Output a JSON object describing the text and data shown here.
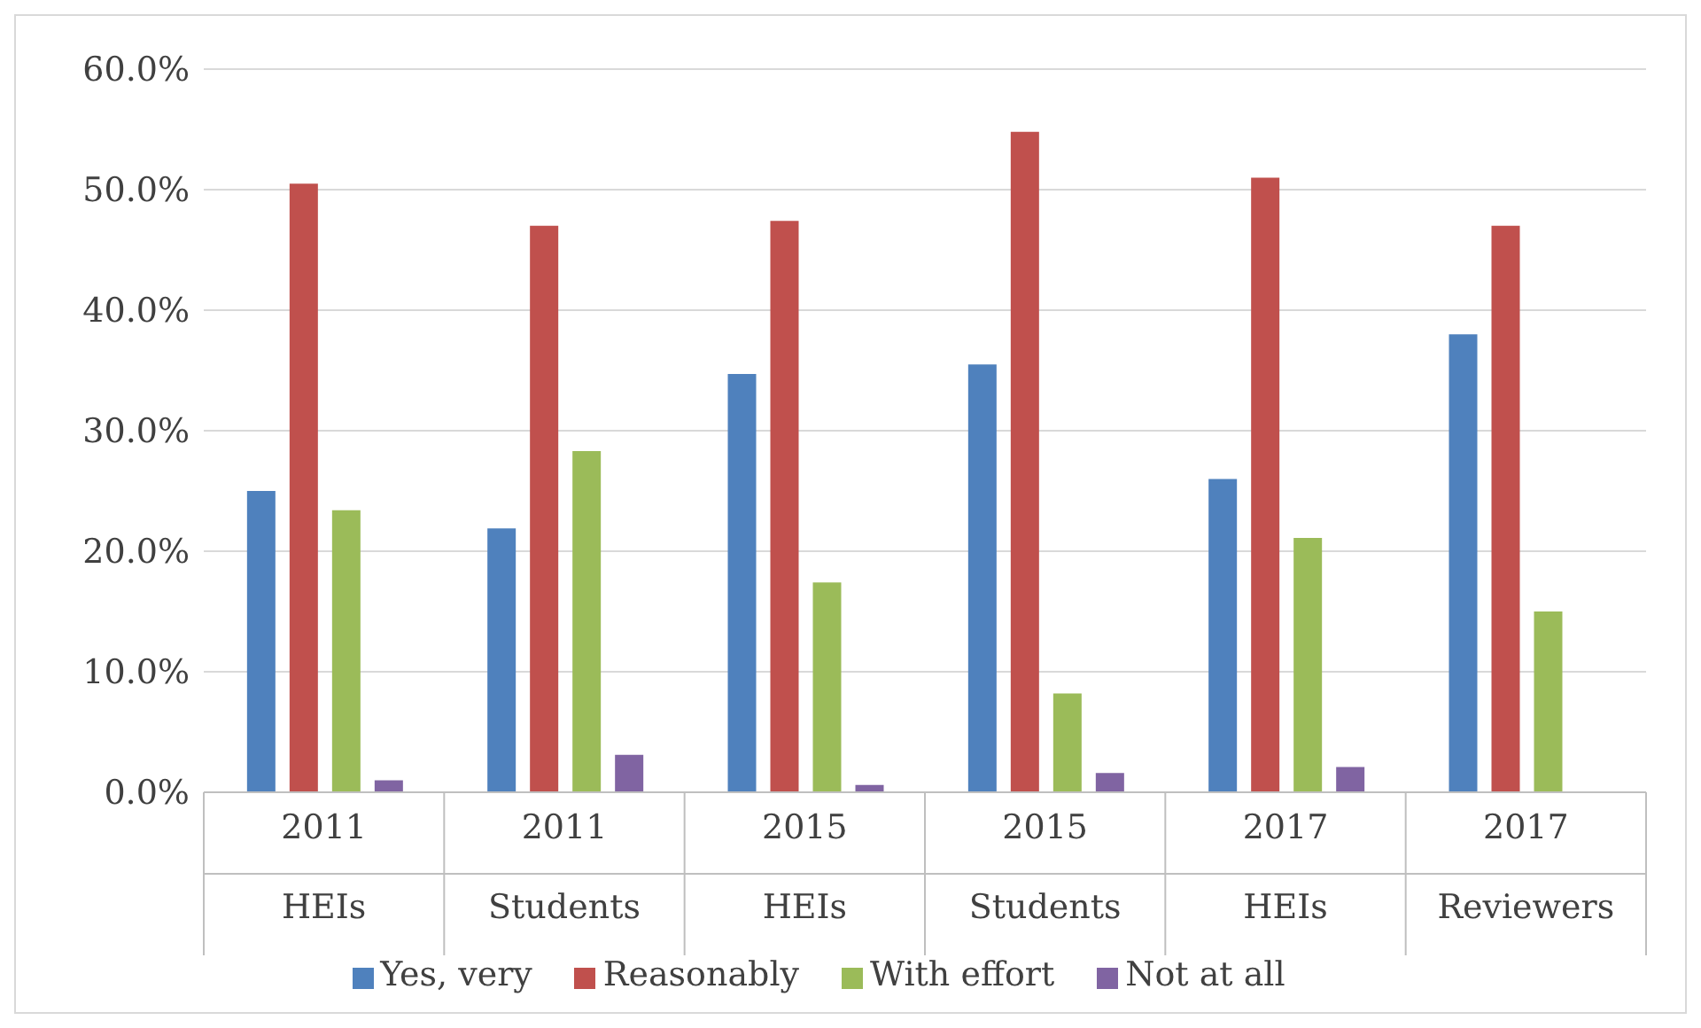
{
  "chart_data": {
    "type": "bar",
    "categories": [
      "2011\nHEIs",
      "2011\nStudents",
      "2015\nHEIs",
      "2015\nStudents",
      "2017\nHEIs",
      "2017\nReviewers"
    ],
    "series": [
      {
        "name": "Yes, very",
        "color": "#4f81bd",
        "values": [
          25.0,
          21.9,
          34.7,
          35.5,
          26.0,
          38.0
        ]
      },
      {
        "name": "Reasonably",
        "color": "#c0504d",
        "values": [
          50.5,
          47.0,
          47.4,
          54.8,
          51.0,
          47.0
        ]
      },
      {
        "name": "With effort",
        "color": "#9bbb59",
        "values": [
          23.4,
          28.3,
          17.4,
          8.2,
          21.1,
          15.0
        ]
      },
      {
        "name": "Not at all",
        "color": "#8064a2",
        "values": [
          1.0,
          3.1,
          0.6,
          1.6,
          2.1,
          null
        ]
      }
    ],
    "ylim": [
      0,
      60
    ],
    "yticks": [
      {
        "value": 0,
        "label": "0.0%"
      },
      {
        "value": 10,
        "label": "10.0%"
      },
      {
        "value": 20,
        "label": "20.0%"
      },
      {
        "value": 30,
        "label": "30.0%"
      },
      {
        "value": 40,
        "label": "40.0%"
      },
      {
        "value": 50,
        "label": "50.0%"
      },
      {
        "value": 60,
        "label": "60.0%"
      }
    ],
    "grid": "y",
    "legend": "bottom"
  }
}
